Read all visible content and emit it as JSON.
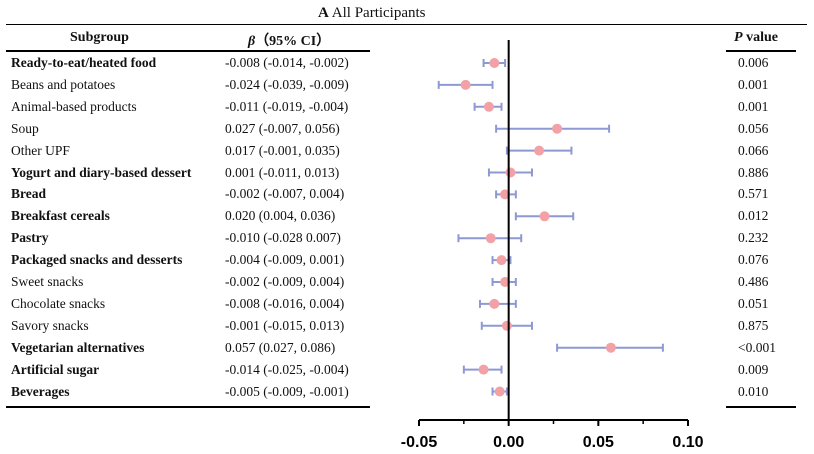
{
  "title": {
    "letter": "A",
    "text": "All Participants"
  },
  "headers": {
    "subgroup": "Subgroup",
    "beta": "β（95% CI）",
    "beta_symbol": "β",
    "beta_ci": "（95% CI）",
    "p_symbol": "P",
    "p_text": "value"
  },
  "colors": {
    "marker": "#f2a1a6",
    "whisker": "#8e99d3",
    "axis": "#000000"
  },
  "chart_data": {
    "type": "forest",
    "xlim": [
      -0.05,
      0.1
    ],
    "xticks": [
      -0.05,
      0.0,
      0.05,
      0.1
    ],
    "xtick_labels": [
      "-0.05",
      "0.00",
      "0.05",
      "0.10"
    ],
    "reference_line": 0,
    "rows": [
      {
        "label": "Ready-to-eat/heated food",
        "bold": true,
        "ci_text": "-0.008 (-0.014, -0.002)",
        "estimate": -0.008,
        "lower": -0.014,
        "upper": -0.002,
        "p": "0.006"
      },
      {
        "label": "Beans and potatoes",
        "bold": false,
        "ci_text": "-0.024 (-0.039, -0.009)",
        "estimate": -0.024,
        "lower": -0.039,
        "upper": -0.009,
        "p": "0.001"
      },
      {
        "label": "Animal-based products",
        "bold": false,
        "ci_text": "-0.011 (-0.019, -0.004)",
        "estimate": -0.011,
        "lower": -0.019,
        "upper": -0.004,
        "p": "0.001"
      },
      {
        "label": "Soup",
        "bold": false,
        "ci_text": "0.027 (-0.007, 0.056)",
        "estimate": 0.027,
        "lower": -0.007,
        "upper": 0.056,
        "p": "0.056"
      },
      {
        "label": "Other UPF",
        "bold": false,
        "ci_text": "0.017 (-0.001, 0.035)",
        "estimate": 0.017,
        "lower": -0.001,
        "upper": 0.035,
        "p": "0.066"
      },
      {
        "label": "Yogurt and diary-based dessert",
        "bold": true,
        "ci_text": "0.001 (-0.011, 0.013)",
        "estimate": 0.001,
        "lower": -0.011,
        "upper": 0.013,
        "p": "0.886"
      },
      {
        "label": "Bread",
        "bold": true,
        "ci_text": "-0.002 (-0.007, 0.004)",
        "estimate": -0.002,
        "lower": -0.007,
        "upper": 0.004,
        "p": "0.571"
      },
      {
        "label": "Breakfast cereals",
        "bold": true,
        "ci_text": "0.020 (0.004, 0.036)",
        "estimate": 0.02,
        "lower": 0.004,
        "upper": 0.036,
        "p": "0.012"
      },
      {
        "label": "Pastry",
        "bold": true,
        "ci_text": "-0.010 (-0.028 0.007)",
        "estimate": -0.01,
        "lower": -0.028,
        "upper": 0.007,
        "p": "0.232"
      },
      {
        "label": "Packaged snacks and desserts",
        "bold": true,
        "ci_text": "-0.004 (-0.009, 0.001)",
        "estimate": -0.004,
        "lower": -0.009,
        "upper": 0.001,
        "p": "0.076"
      },
      {
        "label": "Sweet snacks",
        "bold": false,
        "ci_text": "-0.002 (-0.009, 0.004)",
        "estimate": -0.002,
        "lower": -0.009,
        "upper": 0.004,
        "p": "0.486"
      },
      {
        "label": "Chocolate snacks",
        "bold": false,
        "ci_text": "-0.008 (-0.016, 0.004)",
        "estimate": -0.008,
        "lower": -0.016,
        "upper": 0.004,
        "p": "0.051"
      },
      {
        "label": "Savory snacks",
        "bold": false,
        "ci_text": "-0.001 (-0.015, 0.013)",
        "estimate": -0.001,
        "lower": -0.015,
        "upper": 0.013,
        "p": "0.875"
      },
      {
        "label": "Vegetarian alternatives",
        "bold": true,
        "ci_text": "0.057 (0.027, 0.086)",
        "estimate": 0.057,
        "lower": 0.027,
        "upper": 0.086,
        "p": "<0.001"
      },
      {
        "label": "Artificial sugar",
        "bold": true,
        "ci_text": "-0.014 (-0.025, -0.004)",
        "estimate": -0.014,
        "lower": -0.025,
        "upper": -0.004,
        "p": "0.009"
      },
      {
        "label": "Beverages",
        "bold": true,
        "ci_text": "-0.005 (-0.009, -0.001)",
        "estimate": -0.005,
        "lower": -0.009,
        "upper": -0.001,
        "p": "0.010"
      }
    ]
  }
}
